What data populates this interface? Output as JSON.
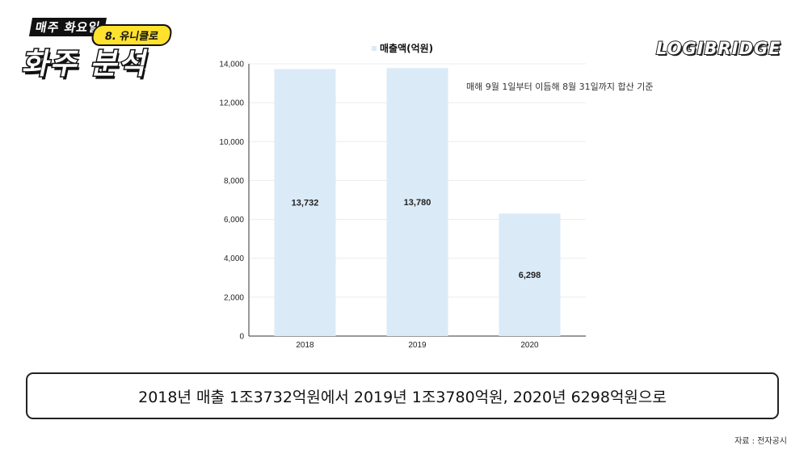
{
  "badge": {
    "top_text": "매주 화요일",
    "pill_text": "8. 유니클로",
    "main_text": "화주 분석"
  },
  "logo_text": "LOGIBRIDGE",
  "chart_data": {
    "type": "bar",
    "legend": "매출액(억원)",
    "note": "매해 9월 1일부터 이듬해 8월 31일까지 합산 기준",
    "categories": [
      "2018",
      "2019",
      "2020"
    ],
    "values": [
      13732,
      13780,
      6298
    ],
    "value_labels": [
      "13,732",
      "13,780",
      "6,298"
    ],
    "y_ticks": [
      0,
      2000,
      4000,
      6000,
      8000,
      10000,
      12000,
      14000
    ],
    "y_tick_labels": [
      "0",
      "2,000",
      "4,000",
      "6,000",
      "8,000",
      "10,000",
      "12,000",
      "14,000"
    ],
    "ylim": [
      0,
      14000
    ],
    "grid": true,
    "legend_position": "top-center",
    "bar_color": "#dbeaf7"
  },
  "summary_text": "2018년 매출 1조3732억원에서 2019년 1조3780억원, 2020년 6298억원으로",
  "source_text": "자료 : 전자공시"
}
